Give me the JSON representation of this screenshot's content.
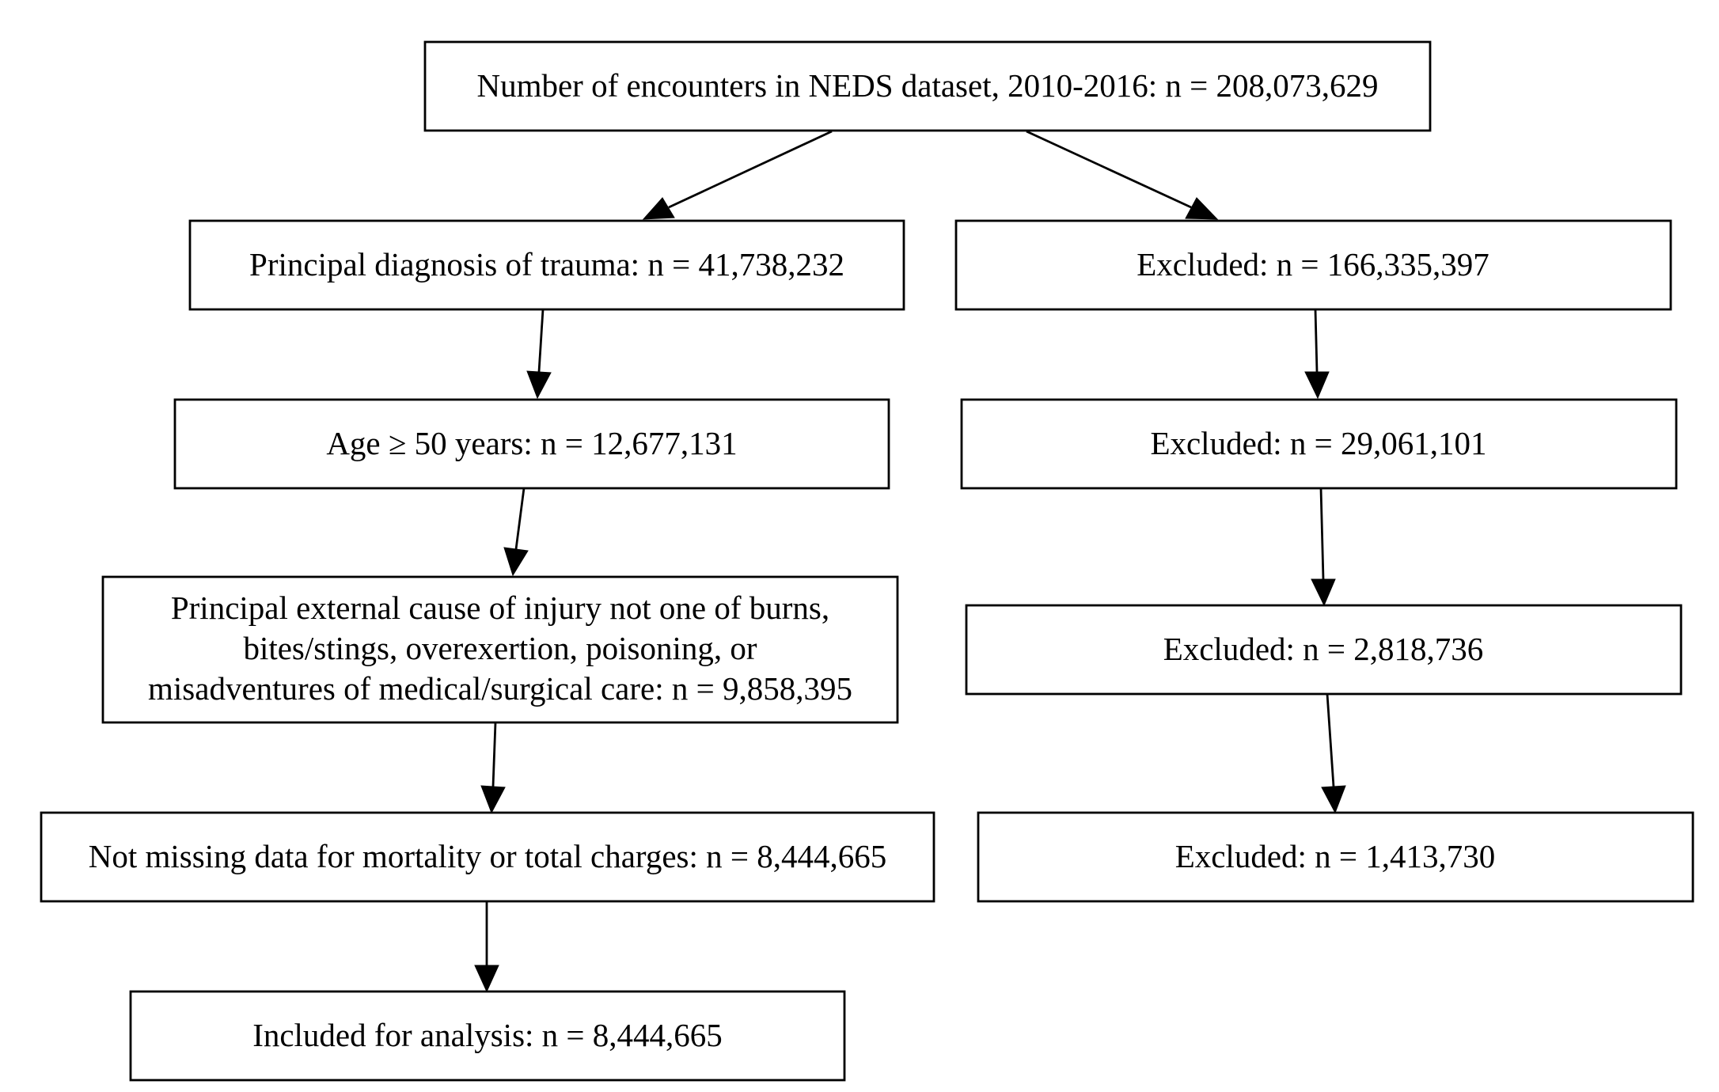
{
  "nodes": {
    "total": {
      "lines": [
        "Number of encounters in NEDS dataset, 2010-2016: n = 208,073,629"
      ]
    },
    "trauma": {
      "lines": [
        "Principal diagnosis of trauma: n = 41,738,232"
      ]
    },
    "excluded_1": {
      "lines": [
        "Excluded: n = 166,335,397"
      ]
    },
    "age": {
      "lines": [
        "Age ≥ 50 years: n = 12,677,131"
      ]
    },
    "excluded_2": {
      "lines": [
        "Excluded: n = 29,061,101"
      ]
    },
    "cause": {
      "lines": [
        "Principal external cause of injury not one of burns,",
        "bites/stings, overexertion, poisoning, or",
        "misadventures of medical/surgical care: n = 9,858,395"
      ]
    },
    "excluded_3": {
      "lines": [
        "Excluded: n = 2,818,736"
      ]
    },
    "missing": {
      "lines": [
        "Not missing data for mortality or total charges: n = 8,444,665"
      ]
    },
    "excluded_4": {
      "lines": [
        "Excluded: n = 1,413,730"
      ]
    },
    "included": {
      "lines": [
        "Included for analysis: n = 8,444,665"
      ]
    }
  },
  "colors": {
    "stroke": "#000000",
    "background": "#ffffff"
  }
}
